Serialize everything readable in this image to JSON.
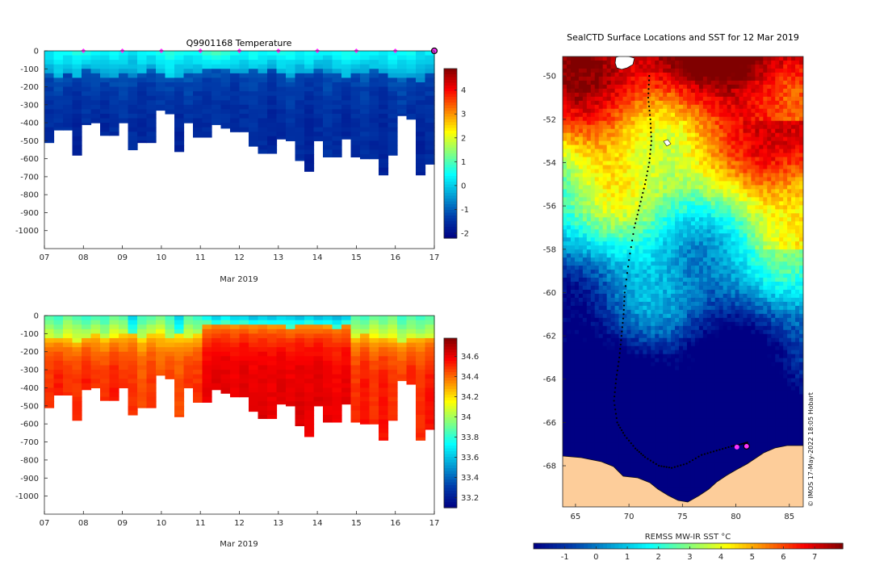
{
  "chart_data": [
    {
      "type": "heatmap",
      "title": "Q9901168  Temperature",
      "xlabel": "Mar 2019",
      "ylabel": "",
      "x_ticks": [
        "07",
        "08",
        "09",
        "10",
        "11",
        "12",
        "13",
        "14",
        "15",
        "16",
        "17"
      ],
      "x_range_days": [
        7,
        17
      ],
      "y_ticks": [
        "0",
        "-100",
        "-200",
        "-300",
        "-400",
        "-500",
        "-600",
        "-700",
        "-800",
        "-900",
        "-1000"
      ],
      "ylim": [
        -1100,
        0
      ],
      "colorbar": {
        "ticks": [
          "-2",
          "-1",
          "0",
          "1",
          "2",
          "3",
          "4"
        ],
        "range": [
          -2.2,
          4.9
        ]
      },
      "profiles": {
        "day": [
          7.0,
          7.24,
          7.48,
          7.72,
          7.96,
          8.2,
          8.44,
          8.68,
          8.92,
          9.16,
          9.4,
          9.64,
          9.88,
          10.12,
          10.36,
          10.6,
          10.84,
          11.08,
          11.32,
          11.56,
          11.8,
          12.04,
          12.28,
          12.52,
          12.76,
          13.0,
          13.24,
          13.48,
          13.72,
          13.96,
          14.2,
          14.44,
          14.68,
          14.92,
          15.16,
          15.4,
          15.64,
          15.88,
          16.12,
          16.36,
          16.6,
          16.84
        ],
        "max_depth": [
          -510,
          -440,
          -440,
          -580,
          -410,
          -400,
          -470,
          -470,
          -400,
          -550,
          -510,
          -510,
          -330,
          -350,
          -560,
          -400,
          -480,
          -480,
          -410,
          -430,
          -450,
          -450,
          -530,
          -570,
          -570,
          -490,
          -500,
          -610,
          -670,
          -500,
          -590,
          -590,
          -490,
          -590,
          -600,
          -600,
          -690,
          -580,
          -360,
          -380,
          -690,
          -630
        ],
        "surface_temp": [
          0.4,
          0.6,
          0.5,
          0.7,
          0.6,
          0.5,
          0.4,
          0.6,
          0.5,
          0.3,
          0.6,
          0.5,
          0.7,
          0.8,
          0.6,
          0.5,
          0.6,
          0.9,
          1.0,
          0.8,
          0.6,
          0.5,
          0.7,
          0.6,
          0.5,
          0.7,
          0.6,
          0.5,
          0.6,
          0.5,
          0.4,
          0.6,
          0.7,
          0.6,
          0.5,
          0.6,
          0.5,
          0.6,
          0.5,
          0.6,
          0.3,
          0.4
        ],
        "mixed_depth": [
          -130,
          -150,
          -120,
          -140,
          -110,
          -120,
          -160,
          -140,
          -120,
          -150,
          -130,
          -110,
          -120,
          -160,
          -140,
          -130,
          -120,
          -100,
          -90,
          -110,
          -120,
          -130,
          -110,
          -120,
          -100,
          -130,
          -140,
          -120,
          -130,
          -110,
          -120,
          -130,
          -140,
          -120,
          -130,
          -110,
          -120,
          -150,
          -160,
          -140,
          -170,
          -120
        ],
        "deep_temp": [
          -1.6,
          -1.5,
          -1.6,
          -1.7,
          -1.5,
          -1.6,
          -1.7,
          -1.6,
          -1.5,
          -1.6,
          -1.7,
          -1.6,
          -1.5,
          -1.6,
          -1.7,
          -1.5,
          -1.6,
          -1.6,
          -1.5,
          -1.6,
          -1.7,
          -1.6,
          -1.5,
          -1.6,
          -1.7,
          -1.6,
          -1.5,
          -1.6,
          -1.7,
          -1.6,
          -1.5,
          -1.6,
          -1.7,
          -1.6,
          -1.5,
          -1.6,
          -1.7,
          -1.6,
          -1.5,
          -1.6,
          -1.7,
          -1.6
        ]
      },
      "markers": {
        "days": [
          8,
          9,
          10,
          11,
          12,
          13,
          14,
          15,
          16
        ],
        "color": "#ff33ff",
        "last_day": 17
      }
    },
    {
      "type": "heatmap",
      "title": "",
      "xlabel": "Mar 2019",
      "x_ticks": [
        "07",
        "08",
        "09",
        "10",
        "11",
        "12",
        "13",
        "14",
        "15",
        "16",
        "17"
      ],
      "y_ticks": [
        "0",
        "-100",
        "-200",
        "-300",
        "-400",
        "-500",
        "-600",
        "-700",
        "-800",
        "-900",
        "-1000"
      ],
      "ylim": [
        -1100,
        0
      ],
      "colorbar": {
        "ticks": [
          "33.2",
          "33.4",
          "33.6",
          "33.8",
          "34",
          "34.2",
          "34.4",
          "34.6"
        ],
        "range": [
          33.1,
          34.78
        ]
      },
      "profiles": {
        "surface_sal": [
          33.85,
          33.8,
          33.9,
          33.85,
          33.8,
          33.85,
          33.8,
          33.9,
          33.85,
          33.6,
          33.8,
          33.85,
          33.9,
          33.8,
          33.6,
          33.85,
          33.8,
          33.7,
          33.6,
          33.65,
          33.6,
          33.6,
          33.55,
          33.6,
          33.55,
          33.6,
          33.6,
          33.55,
          33.6,
          33.55,
          33.6,
          33.55,
          33.6,
          33.85,
          33.8,
          33.9,
          33.85,
          33.9,
          33.8,
          33.85,
          33.8,
          33.85
        ],
        "halocline_depth": [
          -120,
          -130,
          -120,
          -140,
          -120,
          -110,
          -130,
          -120,
          -110,
          -100,
          -120,
          -110,
          -100,
          -130,
          -110,
          -120,
          -110,
          -60,
          -55,
          -50,
          -55,
          -50,
          -55,
          -60,
          -55,
          -60,
          -65,
          -60,
          -55,
          -60,
          -60,
          -65,
          -55,
          -120,
          -110,
          -120,
          -130,
          -120,
          -140,
          -130,
          -120,
          -120
        ],
        "deep_sal": [
          34.5,
          34.55,
          34.5,
          34.5,
          34.55,
          34.5,
          34.5,
          34.55,
          34.5,
          34.5,
          34.45,
          34.5,
          34.45,
          34.5,
          34.45,
          34.5,
          34.5,
          34.6,
          34.62,
          34.62,
          34.6,
          34.62,
          34.6,
          34.62,
          34.6,
          34.62,
          34.6,
          34.62,
          34.6,
          34.62,
          34.6,
          34.58,
          34.6,
          34.5,
          34.55,
          34.5,
          34.55,
          34.5,
          34.5,
          34.55,
          34.5,
          34.55
        ]
      }
    },
    {
      "type": "heatmap",
      "title": "SealCTD Surface Locations and SST for 12 Mar 2019",
      "xlabel": "",
      "x_ticks": [
        "65",
        "70",
        "75",
        "80",
        "85"
      ],
      "xlim": [
        63.8,
        86.3
      ],
      "y_ticks": [
        "-50",
        "-52",
        "-54",
        "-56",
        "-58",
        "-60",
        "-62",
        "-64",
        "-66",
        "-68"
      ],
      "ylim": [
        -69.9,
        -49.1
      ],
      "colorbar": {
        "label": "REMSS MW-IR SST °C",
        "ticks": [
          "-1",
          "0",
          "1",
          "2",
          "3",
          "4",
          "5",
          "6",
          "7"
        ],
        "range": [
          -2.0,
          7.9
        ]
      },
      "track": {
        "lon": [
          71.9,
          71.8,
          72.0,
          72.1,
          71.9,
          71.5,
          71.0,
          70.5,
          70.0,
          69.6,
          69.5,
          69.3,
          69.1,
          68.8,
          68.6,
          68.9,
          69.6,
          70.6,
          71.5,
          72.8,
          74.0,
          75.4,
          76.8,
          78.2,
          79.6,
          80.5,
          81.2
        ],
        "lat": [
          -50.0,
          -51.0,
          -52.0,
          -53.0,
          -54.0,
          -55.0,
          -56.0,
          -57.0,
          -58.5,
          -60.0,
          -61.0,
          -62.0,
          -63.0,
          -64.0,
          -65.0,
          -66.0,
          -66.6,
          -67.2,
          -67.6,
          -68.0,
          -68.1,
          -67.9,
          -67.5,
          -67.3,
          -67.1,
          -67.0,
          -66.9
        ]
      },
      "current_position": {
        "lon": 81.0,
        "lat": -67.1
      },
      "credit": "© IMOS 17-May-2022 18:05 Hobart"
    }
  ]
}
